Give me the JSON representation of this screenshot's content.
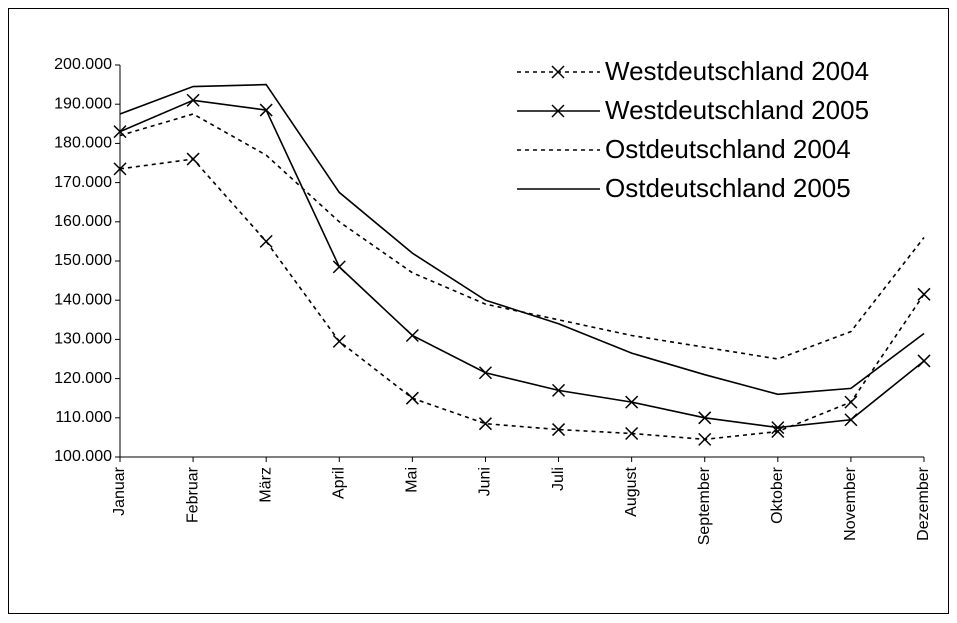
{
  "chart_data": {
    "type": "line",
    "categories": [
      "Januar",
      "Februar",
      "März",
      "April",
      "Mai",
      "Juni",
      "Juli",
      "August",
      "September",
      "Oktober",
      "November",
      "Dezember"
    ],
    "series": [
      {
        "name": "Westdeutschland 2004",
        "color": "#000000",
        "style": "dotted",
        "marker": "x",
        "values": [
          173500,
          176000,
          155000,
          129500,
          115000,
          108500,
          107000,
          106000,
          104500,
          106500,
          114000,
          141500
        ]
      },
      {
        "name": "Westdeutschland 2005",
        "color": "#000000",
        "style": "solid",
        "marker": "x",
        "values": [
          183000,
          191000,
          188500,
          148500,
          131000,
          121500,
          117000,
          114000,
          110000,
          107500,
          109500,
          124500
        ]
      },
      {
        "name": "Ostdeutschland 2004",
        "color": "#000000",
        "style": "dotted",
        "marker": null,
        "values": [
          182000,
          187500,
          177000,
          160000,
          147000,
          139000,
          135000,
          131000,
          128000,
          125000,
          132000,
          156000
        ]
      },
      {
        "name": "Ostdeutschland 2005",
        "color": "#000000",
        "style": "solid",
        "marker": null,
        "values": [
          187500,
          194500,
          195000,
          167500,
          152000,
          140000,
          134000,
          126500,
          121000,
          116000,
          117500,
          131500
        ]
      }
    ],
    "ylim": [
      100000,
      200000
    ],
    "yticks": [
      {
        "value": 100000,
        "label": "100.000"
      },
      {
        "value": 110000,
        "label": "110.000"
      },
      {
        "value": 120000,
        "label": "120.000"
      },
      {
        "value": 130000,
        "label": "130.000"
      },
      {
        "value": 140000,
        "label": "140.000"
      },
      {
        "value": 150000,
        "label": "150.000"
      },
      {
        "value": 160000,
        "label": "160.000"
      },
      {
        "value": 170000,
        "label": "170.000"
      },
      {
        "value": 180000,
        "label": "180.000"
      },
      {
        "value": 190000,
        "label": "190.000"
      },
      {
        "value": 200000,
        "label": "200.000"
      }
    ],
    "legend": "top-right",
    "grid": false
  }
}
